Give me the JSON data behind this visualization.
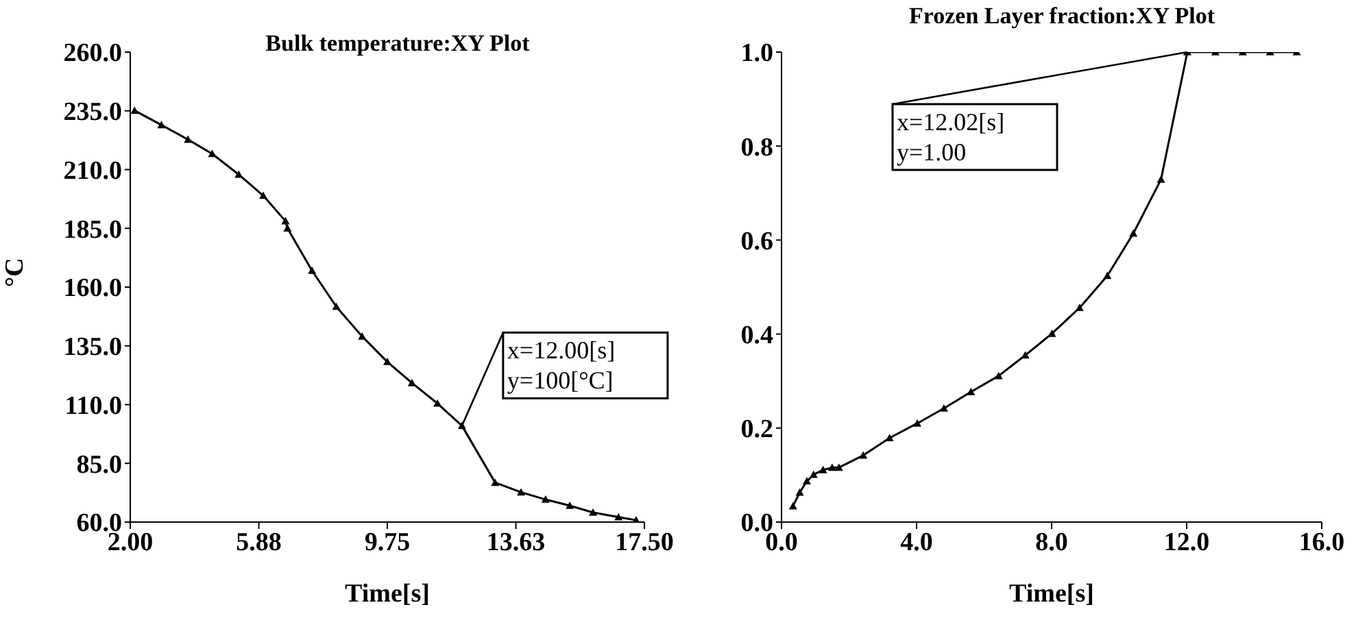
{
  "chart_data": [
    {
      "type": "line",
      "title": "Bulk temperature:XY Plot",
      "xlabel": "Time[s]",
      "ylabel": "°C",
      "marker": "triangle",
      "grid": false,
      "x": [
        2.13,
        2.94,
        3.74,
        4.47,
        5.27,
        6.01,
        6.68,
        6.74,
        7.48,
        8.21,
        8.99,
        9.75,
        10.49,
        11.26,
        12.0,
        13.0,
        13.78,
        14.52,
        15.25,
        15.95,
        16.72,
        17.25
      ],
      "series": [
        {
          "color": "#000000",
          "values": [
            235.1,
            229.0,
            222.8,
            216.7,
            207.9,
            198.9,
            188.1,
            185.0,
            167.0,
            151.7,
            139.0,
            128.2,
            119.2,
            110.5,
            101,
            76.8,
            72.7,
            69.6,
            67.0,
            64.1,
            62.1,
            60.8
          ]
        }
      ],
      "xlim": [
        2,
        17.5
      ],
      "xticks": [
        {
          "value": 2,
          "label": "2.00"
        },
        {
          "value": 5.875,
          "label": "5.88"
        },
        {
          "value": 9.75,
          "label": "9.75"
        },
        {
          "value": 13.625,
          "label": "13.63"
        },
        {
          "value": 17.5,
          "label": "17.50"
        }
      ],
      "ylim": [
        60,
        260
      ],
      "yticks": [
        {
          "value": 60,
          "label": "60.0"
        },
        {
          "value": 85,
          "label": "85.0"
        },
        {
          "value": 110,
          "label": "110.0"
        },
        {
          "value": 135,
          "label": "135.0"
        },
        {
          "value": 160,
          "label": "160.0"
        },
        {
          "value": 185,
          "label": "185.0"
        },
        {
          "value": 210,
          "label": "210.0"
        },
        {
          "value": 235,
          "label": "235.0"
        },
        {
          "value": 260,
          "label": "260.0"
        }
      ],
      "annotations": [
        {
          "text": "x=12.00[s]\ny=100[°C]",
          "x": 12.0,
          "y": 101
        }
      ]
    },
    {
      "type": "line",
      "title": "Frozen Layer fraction:XY Plot",
      "xlabel": "Time[s]",
      "marker": "triangle",
      "grid": false,
      "x": [
        0.34,
        0.54,
        0.75,
        0.95,
        1.23,
        1.5,
        1.7,
        2.42,
        3.2,
        4.02,
        4.81,
        5.61,
        6.43,
        7.22,
        8.01,
        8.83,
        9.65,
        10.42,
        11.24,
        12.02,
        12.85,
        13.66,
        14.47,
        15.26
      ],
      "series": [
        {
          "color": "#000000",
          "values": [
            0.034,
            0.063,
            0.087,
            0.101,
            0.111,
            0.116,
            0.116,
            0.142,
            0.179,
            0.21,
            0.242,
            0.277,
            0.311,
            0.355,
            0.401,
            0.456,
            0.524,
            0.614,
            0.729,
            1.0,
            1.0,
            1.0,
            1.0,
            1.0
          ]
        }
      ],
      "xlim": [
        0,
        16
      ],
      "xticks": [
        {
          "value": 0,
          "label": "0.0"
        },
        {
          "value": 4,
          "label": "4.0"
        },
        {
          "value": 8,
          "label": "8.0"
        },
        {
          "value": 12,
          "label": "12.0"
        },
        {
          "value": 16,
          "label": "16.0"
        }
      ],
      "ylim": [
        0,
        1
      ],
      "yticks": [
        {
          "value": 0,
          "label": "0.0"
        },
        {
          "value": 0.2,
          "label": "0.2"
        },
        {
          "value": 0.4,
          "label": "0.4"
        },
        {
          "value": 0.6,
          "label": "0.6"
        },
        {
          "value": 0.8,
          "label": "0.8"
        },
        {
          "value": 1,
          "label": "1.0"
        }
      ],
      "annotations": [
        {
          "text": "x=12.02[s]\ny=1.00",
          "x": 12.02,
          "y": 1.0
        }
      ]
    }
  ]
}
